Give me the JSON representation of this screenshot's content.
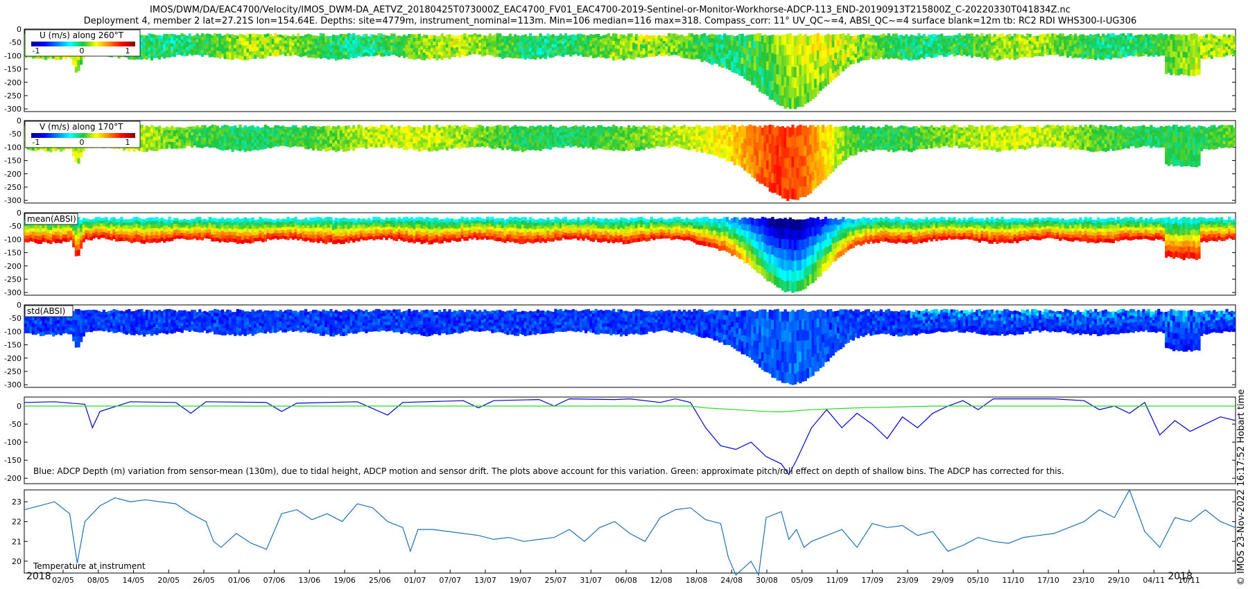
{
  "figure": {
    "title_line1": "IMOS/DWM/DA/EAC4700/Velocity/IMOS_DWM-DA_AETVZ_20180425T073000Z_EAC4700_FV01_EAC4700-2019-Sentinel-or-Monitor-Workhorse-ADCP-113_END-20190913T215800Z_C-20220330T041834Z.nc",
    "title_line2": "Deployment 4, member 2 lat=27.21S lon=154.64E. Depths: site=4779m, instrument_nominal=113m. Min=106 median=116 max=318. Compass_corr: 11° UV_QC~=4, ABSI_QC~=4 surface blank=12m tb: RC2 RDI WHS300-I-UG306",
    "side_stamp": "© IMOS 23-Nov-2022 16:17:52 Hobart time"
  },
  "chart_data": [
    {
      "type": "heatmap",
      "panel": "u",
      "label": "U (m/s) along 260°T",
      "colorbar_ticks": [
        "-1",
        "0",
        "1"
      ],
      "colormap": "jet",
      "yticks": [
        "0",
        "-50",
        "-100",
        "-150",
        "-200",
        "-250",
        "-300"
      ],
      "ylim": [
        -310,
        0
      ]
    },
    {
      "type": "heatmap",
      "panel": "v",
      "label": "V (m/s) along 170°T",
      "colorbar_ticks": [
        "-1",
        "0",
        "1"
      ],
      "colormap": "jet",
      "yticks": [
        "0",
        "-50",
        "-100",
        "-150",
        "-200",
        "-250",
        "-300"
      ],
      "ylim": [
        -310,
        0
      ]
    },
    {
      "type": "heatmap",
      "panel": "mean_absi",
      "label": "mean(ABSI)",
      "colormap": "jet",
      "yticks": [
        "0",
        "-50",
        "-100",
        "-150",
        "-200",
        "-250",
        "-300"
      ],
      "ylim": [
        -310,
        0
      ]
    },
    {
      "type": "heatmap",
      "panel": "std_absi",
      "label": "std(ABSI)",
      "colormap": "jet",
      "yticks": [
        "0",
        "-50",
        "-100",
        "-150",
        "-200",
        "-250",
        "-300"
      ],
      "ylim": [
        -310,
        0
      ]
    },
    {
      "type": "line",
      "panel": "depth",
      "annotation": "Blue: ADCP Depth (m) variation from sensor-mean (130m), due to tidal height, ADCP motion and sensor drift. The plots above account for this variation. Green: approximate pitch/roll effect on depth of shallow bins. The ADCP has corrected for this.",
      "yticks": [
        "0",
        "-50",
        "-100",
        "-150",
        "-200"
      ],
      "ylim": [
        -215,
        25
      ],
      "series": [
        {
          "color": "#0000cc",
          "points": [
            [
              0,
              10
            ],
            [
              4,
              12
            ],
            [
              8,
              5
            ],
            [
              9,
              -60
            ],
            [
              10,
              -15
            ],
            [
              14,
              12
            ],
            [
              20,
              10
            ],
            [
              22,
              -20
            ],
            [
              24,
              12
            ],
            [
              32,
              10
            ],
            [
              34,
              -15
            ],
            [
              36,
              8
            ],
            [
              44,
              12
            ],
            [
              48,
              -25
            ],
            [
              50,
              10
            ],
            [
              58,
              15
            ],
            [
              60,
              -5
            ],
            [
              62,
              15
            ],
            [
              68,
              18
            ],
            [
              70,
              0
            ],
            [
              72,
              20
            ],
            [
              78,
              18
            ],
            [
              80,
              20
            ],
            [
              84,
              10
            ],
            [
              86,
              20
            ],
            [
              88,
              10
            ],
            [
              90,
              -60
            ],
            [
              92,
              -110
            ],
            [
              94,
              -120
            ],
            [
              96,
              -100
            ],
            [
              98,
              -140
            ],
            [
              100,
              -160
            ],
            [
              101,
              -190
            ],
            [
              102,
              -150
            ],
            [
              104,
              -60
            ],
            [
              106,
              -10
            ],
            [
              108,
              -60
            ],
            [
              110,
              -20
            ],
            [
              112,
              -50
            ],
            [
              114,
              -90
            ],
            [
              116,
              -30
            ],
            [
              118,
              -60
            ],
            [
              120,
              -20
            ],
            [
              122,
              0
            ],
            [
              124,
              15
            ],
            [
              126,
              -10
            ],
            [
              128,
              20
            ],
            [
              136,
              20
            ],
            [
              140,
              15
            ],
            [
              142,
              -10
            ],
            [
              144,
              0
            ],
            [
              146,
              -20
            ],
            [
              148,
              10
            ],
            [
              150,
              -80
            ],
            [
              152,
              -40
            ],
            [
              154,
              -70
            ],
            [
              156,
              -50
            ],
            [
              158,
              -30
            ],
            [
              160,
              -40
            ]
          ]
        },
        {
          "color": "#22dd22",
          "points": [
            [
              0,
              0
            ],
            [
              88,
              0
            ],
            [
              90,
              -5
            ],
            [
              94,
              -10
            ],
            [
              98,
              -15
            ],
            [
              100,
              -16
            ],
            [
              104,
              -10
            ],
            [
              110,
              -5
            ],
            [
              116,
              -2
            ],
            [
              120,
              0
            ],
            [
              160,
              0
            ]
          ]
        }
      ]
    },
    {
      "type": "line",
      "panel": "temperature",
      "annotation": "Temperature at instrument",
      "yticks": [
        "23",
        "22",
        "21",
        "20"
      ],
      "ylim": [
        19.4,
        23.6
      ],
      "series": [
        {
          "color": "#1f6fb4",
          "points": [
            [
              0,
              22.6
            ],
            [
              2,
              22.8
            ],
            [
              4,
              23.0
            ],
            [
              6,
              22.4
            ],
            [
              7,
              19.9
            ],
            [
              8,
              22.0
            ],
            [
              10,
              22.8
            ],
            [
              12,
              23.2
            ],
            [
              14,
              23.0
            ],
            [
              16,
              23.1
            ],
            [
              20,
              22.9
            ],
            [
              22,
              22.4
            ],
            [
              24,
              22.0
            ],
            [
              25,
              21.0
            ],
            [
              26,
              20.7
            ],
            [
              28,
              21.4
            ],
            [
              30,
              20.9
            ],
            [
              32,
              20.6
            ],
            [
              34,
              22.4
            ],
            [
              36,
              22.6
            ],
            [
              38,
              22.1
            ],
            [
              40,
              22.4
            ],
            [
              42,
              22.0
            ],
            [
              44,
              22.9
            ],
            [
              46,
              22.7
            ],
            [
              48,
              22.0
            ],
            [
              50,
              21.7
            ],
            [
              51,
              20.5
            ],
            [
              52,
              21.6
            ],
            [
              54,
              21.6
            ],
            [
              56,
              21.5
            ],
            [
              60,
              21.3
            ],
            [
              62,
              21.1
            ],
            [
              64,
              21.2
            ],
            [
              66,
              21.0
            ],
            [
              68,
              21.1
            ],
            [
              70,
              21.2
            ],
            [
              72,
              21.6
            ],
            [
              74,
              21.0
            ],
            [
              76,
              21.7
            ],
            [
              78,
              22.0
            ],
            [
              80,
              21.4
            ],
            [
              82,
              21.0
            ],
            [
              84,
              22.2
            ],
            [
              86,
              22.6
            ],
            [
              88,
              22.7
            ],
            [
              90,
              22.1
            ],
            [
              92,
              21.9
            ],
            [
              93,
              20.2
            ],
            [
              94,
              19.3
            ],
            [
              96,
              20.0
            ],
            [
              97,
              19.3
            ],
            [
              98,
              22.2
            ],
            [
              100,
              22.5
            ],
            [
              101,
              21.1
            ],
            [
              102,
              21.6
            ],
            [
              103,
              20.7
            ],
            [
              104,
              21.0
            ],
            [
              106,
              21.3
            ],
            [
              108,
              21.6
            ],
            [
              110,
              20.7
            ],
            [
              112,
              21.9
            ],
            [
              114,
              21.7
            ],
            [
              116,
              21.8
            ],
            [
              118,
              21.3
            ],
            [
              120,
              21.5
            ],
            [
              122,
              20.5
            ],
            [
              124,
              20.8
            ],
            [
              126,
              21.2
            ],
            [
              128,
              21.0
            ],
            [
              130,
              20.9
            ],
            [
              132,
              21.2
            ],
            [
              134,
              21.3
            ],
            [
              136,
              21.4
            ],
            [
              138,
              21.7
            ],
            [
              140,
              22.0
            ],
            [
              142,
              22.6
            ],
            [
              144,
              22.2
            ],
            [
              146,
              23.6
            ],
            [
              148,
              21.5
            ],
            [
              150,
              20.7
            ],
            [
              152,
              22.2
            ],
            [
              154,
              22.0
            ],
            [
              156,
              22.6
            ],
            [
              158,
              22.0
            ],
            [
              160,
              21.7
            ]
          ]
        }
      ]
    }
  ],
  "x_axis": {
    "ticks": [
      "02/05",
      "08/05",
      "14/05",
      "20/05",
      "26/05",
      "01/06",
      "07/06",
      "13/06",
      "19/06",
      "25/06",
      "01/07",
      "07/07",
      "13/07",
      "19/07",
      "25/07",
      "31/07",
      "06/08",
      "12/08",
      "18/08",
      "24/08",
      "30/08",
      "05/09",
      "11/09",
      "17/09",
      "23/09",
      "29/09",
      "05/10",
      "11/10",
      "17/10",
      "23/10",
      "29/10",
      "04/11",
      "10/11"
    ],
    "year_left": "2018",
    "year_right": "2018"
  }
}
